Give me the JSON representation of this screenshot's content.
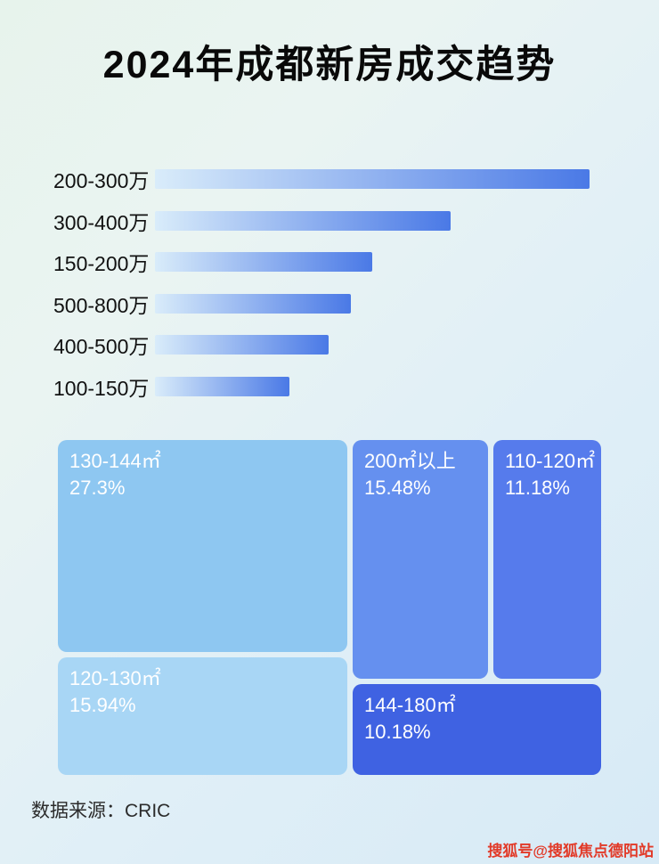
{
  "title": "2024年成都新房成交趋势",
  "chart_data": [
    {
      "type": "bar",
      "orientation": "horizontal",
      "title": "2024年成都新房成交趋势",
      "note": "no numeric axis shown; values are relative bar lengths (longest = 100)",
      "categories": [
        "200-300万",
        "300-400万",
        "150-200万",
        "500-800万",
        "400-500万",
        "100-150万"
      ],
      "values": [
        100,
        68,
        50,
        45,
        40,
        31
      ],
      "bar_gradient_start": "#d9ecfa",
      "bar_gradient_end": "#4a79e6"
    },
    {
      "type": "treemap",
      "items": [
        {
          "label": "130-144㎡",
          "percent": "27.3%",
          "color": "#8ec7f1"
        },
        {
          "label": "120-130㎡",
          "percent": "15.94%",
          "color": "#a8d6f5"
        },
        {
          "label": "200㎡以上",
          "percent": "15.48%",
          "color": "#6590ef"
        },
        {
          "label": "110-120㎡",
          "percent": "11.18%",
          "color": "#567bec"
        },
        {
          "label": "144-180㎡",
          "percent": "10.18%",
          "color": "#3f62e2"
        }
      ]
    }
  ],
  "footer": {
    "source": "数据来源：CRIC"
  },
  "watermark": "搜狐号@搜狐焦点德阳站"
}
